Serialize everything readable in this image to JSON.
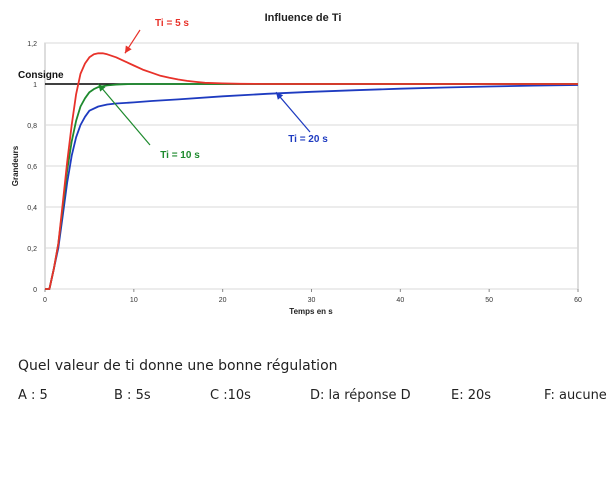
{
  "chart_data": {
    "type": "line",
    "title": "Influence de Ti",
    "xlabel": "Temps en s",
    "ylabel": "Grandeurs",
    "xlim": [
      0,
      60
    ],
    "ylim": [
      0,
      1.2
    ],
    "xticks": [
      0,
      10,
      20,
      30,
      40,
      50,
      60
    ],
    "yticks": [
      {
        "value": 0,
        "label": "0"
      },
      {
        "value": 0.2,
        "label": "0,2"
      },
      {
        "value": 0.4,
        "label": "0,4"
      },
      {
        "value": 0.6,
        "label": "0,6"
      },
      {
        "value": 0.8,
        "label": "0,8"
      },
      {
        "value": 1.0,
        "label": "1"
      },
      {
        "value": 1.2,
        "label": "1,2"
      }
    ],
    "grid": "horizontal",
    "reference_line": {
      "name": "Consigne",
      "y": 1.0,
      "color": "#000000"
    },
    "series": [
      {
        "name": "Ti = 5 s",
        "color": "#e8322a",
        "x": [
          0,
          0.5,
          1,
          1.5,
          2,
          2.5,
          3,
          3.5,
          4,
          4.5,
          5,
          5.5,
          6,
          6.5,
          7,
          8,
          9,
          10,
          11,
          12,
          13,
          14,
          15,
          16,
          17,
          18,
          20,
          22,
          25,
          30,
          40,
          50,
          60
        ],
        "y": [
          0,
          0,
          0.1,
          0.22,
          0.42,
          0.62,
          0.8,
          0.95,
          1.05,
          1.1,
          1.13,
          1.145,
          1.15,
          1.15,
          1.145,
          1.13,
          1.11,
          1.09,
          1.07,
          1.055,
          1.04,
          1.03,
          1.022,
          1.015,
          1.01,
          1.006,
          1.003,
          1.001,
          1.0,
          1.0,
          1.0,
          1.0,
          1.0
        ]
      },
      {
        "name": "Ti = 10 s",
        "color": "#1e8a2e",
        "x": [
          0,
          0.5,
          1,
          1.5,
          2,
          2.5,
          3,
          3.5,
          4,
          4.5,
          5,
          5.5,
          6,
          7,
          8,
          9,
          10,
          12,
          15,
          20,
          30,
          40,
          50,
          60
        ],
        "y": [
          0,
          0,
          0.1,
          0.22,
          0.4,
          0.58,
          0.72,
          0.82,
          0.89,
          0.93,
          0.96,
          0.975,
          0.985,
          0.993,
          0.997,
          0.999,
          1.0,
          1.0,
          1.0,
          1.0,
          1.0,
          1.0,
          1.0,
          1.0
        ]
      },
      {
        "name": "Ti = 20 s",
        "color": "#1e3bc0",
        "x": [
          0,
          0.5,
          1,
          1.5,
          2,
          2.5,
          3,
          3.5,
          4,
          4.5,
          5,
          6,
          7,
          8,
          10,
          12,
          15,
          20,
          25,
          30,
          35,
          40,
          45,
          50,
          55,
          60
        ],
        "y": [
          0,
          0,
          0.1,
          0.2,
          0.36,
          0.52,
          0.65,
          0.74,
          0.8,
          0.84,
          0.87,
          0.89,
          0.9,
          0.905,
          0.91,
          0.917,
          0.925,
          0.94,
          0.952,
          0.962,
          0.97,
          0.977,
          0.983,
          0.988,
          0.992,
          0.995
        ]
      }
    ],
    "annotations": [
      {
        "text": "Ti = 5 s",
        "series": 0,
        "points_to": [
          9,
          1.15
        ]
      },
      {
        "text": "Ti = 10 s",
        "series": 1,
        "points_to": [
          6,
          1.0
        ]
      },
      {
        "text": "Ti = 20 s",
        "series": 2,
        "points_to": [
          26,
          0.96
        ]
      }
    ]
  },
  "question": "Quel valeur de ti donne une bonne régulation",
  "answers": [
    "A : 5",
    "B : 5s",
    "C :10s",
    "D: la réponse D",
    "E: 20s",
    "F: aucune"
  ]
}
